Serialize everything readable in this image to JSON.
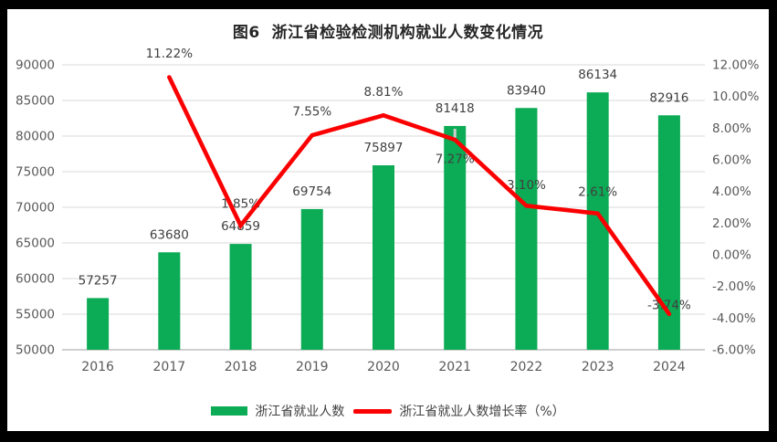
{
  "window": {
    "frame_color": "#000000",
    "canvas_color": "#ffffff"
  },
  "chart_data": {
    "type": "bar",
    "title": "图6  浙江省检验检测机构就业人数变化情况",
    "categories": [
      "2016",
      "2017",
      "2018",
      "2019",
      "2020",
      "2021",
      "2022",
      "2023",
      "2024"
    ],
    "series": [
      {
        "name": "浙江省就业人数",
        "type": "bar",
        "axis": "left",
        "color": "#0cab55",
        "values": [
          57257,
          63680,
          64859,
          69754,
          75897,
          81418,
          83940,
          86134,
          82916
        ],
        "labels": [
          "57257",
          "63680",
          "64859",
          "69754",
          "75897",
          "81418",
          "83940",
          "86134",
          "82916"
        ]
      },
      {
        "name": "浙江省就业人数增长率（%）",
        "type": "line",
        "axis": "right",
        "color": "#fb0000",
        "start_category_index": 1,
        "values": [
          11.22,
          1.85,
          7.55,
          8.81,
          7.27,
          3.1,
          2.61,
          -3.74
        ],
        "labels": [
          "11.22%",
          "1.85%",
          "7.55%",
          "8.81%",
          "7.27%",
          "3.10%",
          "2.61%",
          "-3.74%"
        ]
      }
    ],
    "left_axis": {
      "min": 50000,
      "max": 90000,
      "step": 5000,
      "ticks": [
        "90000",
        "85000",
        "80000",
        "75000",
        "70000",
        "65000",
        "60000",
        "55000",
        "50000"
      ]
    },
    "right_axis": {
      "min": -6,
      "max": 12,
      "step": 2,
      "ticks": [
        "12.00%",
        "10.00%",
        "8.00%",
        "6.00%",
        "4.00%",
        "2.00%",
        "0.00%",
        "-2.00%",
        "-4.00%",
        "-6.00%"
      ]
    },
    "grid": "horizontal-major",
    "legend_position": "bottom",
    "xlabel": "",
    "ylabel": ""
  },
  "legend": {
    "items": [
      {
        "label": "浙江省就业人数",
        "swatch": "bar",
        "color": "#0cab55"
      },
      {
        "label": "浙江省就业人数增长率（%）",
        "swatch": "line",
        "color": "#fb0000"
      }
    ]
  },
  "colors": {
    "grid_line": "#d9d9d9",
    "axis_line": "#bfbfbf",
    "tick_text": "#595959",
    "data_label": "#404040",
    "title_text": "#262626",
    "artifact_tick": "#cfd2d0"
  }
}
